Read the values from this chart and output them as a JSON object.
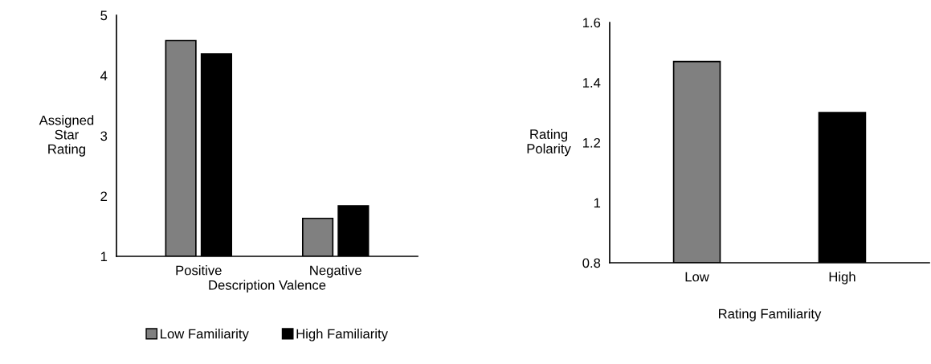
{
  "chart_data": [
    {
      "type": "bar",
      "categories": [
        "Positive",
        "Negative"
      ],
      "xlabel": "Description Valence",
      "ylabel": "Assigned\nStar\nRating",
      "ylim": [
        1,
        5
      ],
      "yticks": [
        1,
        2,
        3,
        4,
        5
      ],
      "grid": false,
      "legend": "bottom",
      "series": [
        {
          "name": "Low Familiarity",
          "color": "#808080",
          "values": [
            4.58,
            1.63
          ]
        },
        {
          "name": "High Familiarity",
          "color": "#000000",
          "values": [
            4.36,
            1.84
          ]
        }
      ]
    },
    {
      "type": "bar",
      "categories": [
        "Low",
        "High"
      ],
      "xlabel": "Rating Familiarity",
      "ylabel": "Rating\nPolarity",
      "ylim": [
        0.8,
        1.6
      ],
      "yticks": [
        0.8,
        1,
        1.2,
        1.4,
        1.6
      ],
      "grid": false,
      "values": [
        1.47,
        1.3
      ],
      "colors": [
        "#808080",
        "#000000"
      ]
    }
  ]
}
